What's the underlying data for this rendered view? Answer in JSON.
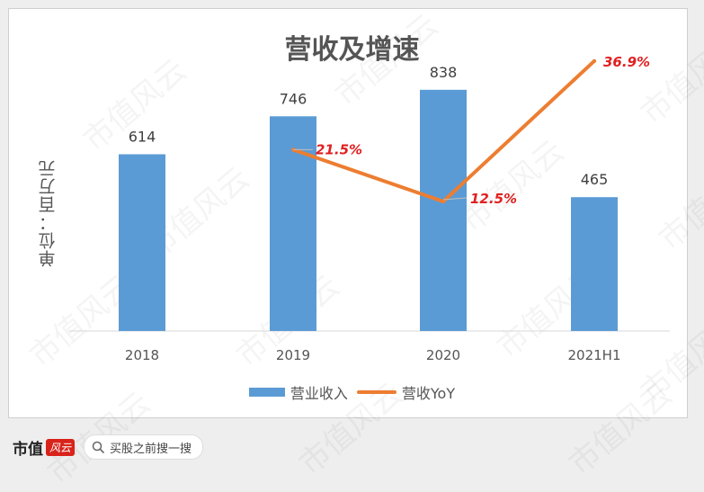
{
  "page": {
    "watermark_text": "市值风云",
    "footer": {
      "brand": "市值",
      "brand_logo": "风云",
      "search_placeholder": "买股之前搜一搜",
      "search_icon": "search-icon"
    }
  },
  "chart_data": {
    "type": "bar",
    "title": "营收及增速",
    "ylabel": "单位：百万元",
    "categories": [
      "2018",
      "2019",
      "2020",
      "2021H1"
    ],
    "series": [
      {
        "name": "营业收入",
        "type": "bar",
        "values": [
          614,
          746,
          838,
          465
        ],
        "labels": [
          "614",
          "746",
          "838",
          "465"
        ],
        "color": "#5b9bd5"
      },
      {
        "name": "营收YoY",
        "type": "line",
        "values": [
          null,
          21.5,
          12.5,
          36.9
        ],
        "labels": [
          "",
          "21.5%",
          "12.5%",
          "36.9%"
        ],
        "unit": "%",
        "color": "#ed7d31",
        "label_color": "#e02020"
      }
    ],
    "ylim": [
      0,
      1000
    ],
    "y2lim": [
      -10,
      40
    ],
    "grid": false,
    "legend_position": "bottom"
  }
}
